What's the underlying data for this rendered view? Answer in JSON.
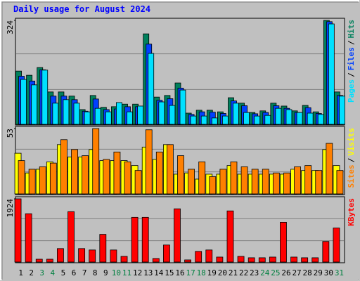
{
  "chart_data": {
    "type": "bar",
    "title": "Daily usage for August 2024",
    "categories": [
      "1",
      "2",
      "3",
      "4",
      "5",
      "6",
      "7",
      "8",
      "9",
      "10",
      "11",
      "12",
      "13",
      "14",
      "15",
      "16",
      "17",
      "18",
      "19",
      "20",
      "21",
      "22",
      "23",
      "24",
      "25",
      "26",
      "27",
      "28",
      "29",
      "30",
      "31"
    ],
    "category_colors": [
      "#000000",
      "#000000",
      "#008040",
      "#008040",
      "#000000",
      "#000000",
      "#000000",
      "#000000",
      "#000000",
      "#008040",
      "#008040",
      "#000000",
      "#000000",
      "#000000",
      "#000000",
      "#000000",
      "#008040",
      "#008040",
      "#000000",
      "#000000",
      "#000000",
      "#000000",
      "#000000",
      "#008040",
      "#008040",
      "#000000",
      "#000000",
      "#000000",
      "#000000",
      "#000000",
      "#008040"
    ],
    "legend_separator": "/",
    "panels": [
      {
        "ylim": [
          0,
          324
        ],
        "yticks": [
          324
        ],
        "series": [
          {
            "name": "Pages",
            "color": "#00e0ff",
            "values": [
              140,
              123,
              169,
              66,
              77,
              66,
              39,
              50,
              39,
              68,
              39,
              57,
              221,
              70,
              59,
              107,
              26,
              26,
              20,
              26,
              66,
              37,
              26,
              28,
              50,
              46,
              37,
              35,
              31,
              313,
              88
            ]
          },
          {
            "name": "Files",
            "color": "#0040ff",
            "values": [
              150,
              135,
              170,
              88,
              88,
              77,
              41,
              79,
              46,
              48,
              55,
              55,
              250,
              75,
              80,
              113,
              31,
              39,
              38,
              34,
              73,
              58,
              33,
              37,
              58,
              50,
              37,
              52,
              34,
              320,
              90
            ]
          },
          {
            "name": "Hits",
            "color": "#00805c",
            "values": [
              166,
              153,
              177,
              101,
              101,
              88,
              46,
              90,
              53,
              55,
              63,
              63,
              282,
              85,
              90,
              129,
              35,
              44,
              44,
              39,
              83,
              66,
              37,
              42,
              66,
              57,
              42,
              59,
              39,
              324,
              101
            ]
          }
        ]
      },
      {
        "ylim": [
          0,
          53
        ],
        "yticks": [
          53
        ],
        "series": [
          {
            "name": "Sites",
            "color": "#ff8000",
            "values": [
              27,
              20,
              22,
              25,
              44,
              36,
              31,
              53,
              28,
              34,
              26,
              19,
              52,
              34,
              40,
              31,
              20,
              26,
              14,
              20,
              26,
              22,
              20,
              20,
              17,
              17,
              22,
              23,
              19,
              41,
              19
            ]
          },
          {
            "name": "Visits",
            "color": "#ffff00",
            "values": [
              33,
              17,
              20,
              26,
              40,
              30,
              30,
              36,
              27,
              27,
              27,
              23,
              38,
              28,
              40,
              16,
              17,
              12,
              16,
              16,
              23,
              16,
              16,
              16,
              16,
              16,
              20,
              19,
              19,
              36,
              23
            ]
          }
        ]
      },
      {
        "ylim": [
          0,
          1924
        ],
        "yticks": [
          1924
        ],
        "series": [
          {
            "name": "KBytes",
            "color": "#ff0000",
            "values": [
              1924,
              1470,
              86,
              86,
              410,
              1534,
              410,
              367,
              842,
              367,
              173,
              1361,
              1361,
              108,
              518,
              1620,
              65,
              324,
              367,
              151,
              1556,
              173,
              130,
              130,
              151,
              1210,
              151,
              130,
              130,
              626,
              1037
            ]
          }
        ]
      }
    ]
  }
}
